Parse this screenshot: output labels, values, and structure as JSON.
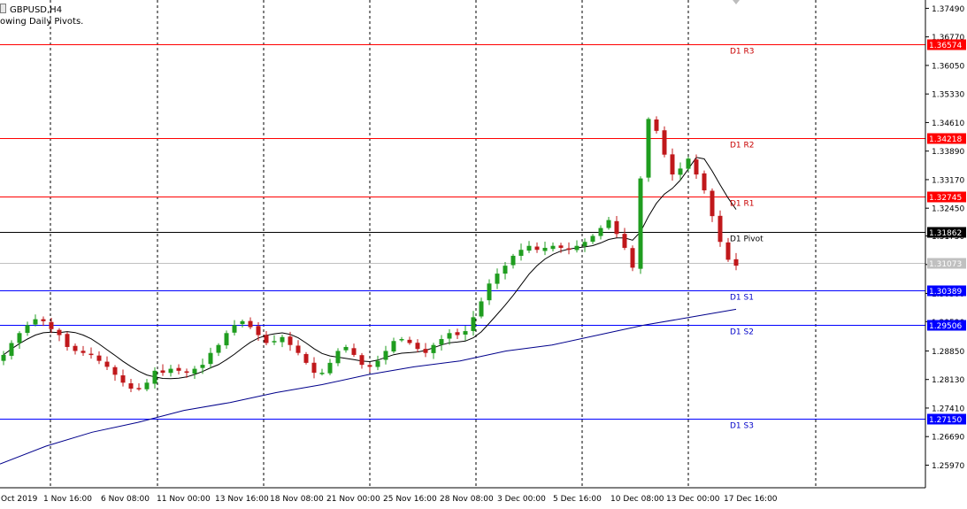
{
  "header": {
    "symbol_label": "GBPUSD,H4",
    "indicator_label": "owing Daily Pivots."
  },
  "colors": {
    "bull": "#1f9d1f",
    "bear": "#c0181b",
    "resistance": "#ff0000",
    "support": "#0000ff",
    "pivot": "#000000",
    "ma_fast": "#000000",
    "ma_slow": "#00008b",
    "current_price": "#c0c0c0"
  },
  "chart_data": {
    "type": "candlestick",
    "symbol": "GBPUSD",
    "timeframe": "H4",
    "ylim": [
      1.254,
      1.377
    ],
    "y_ticks": [
      "1.37490",
      "1.36770",
      "1.36050",
      "1.35330",
      "1.34610",
      "1.33890",
      "1.33170",
      "1.32450",
      "1.31750",
      "1.31030",
      "1.30300",
      "1.29590",
      "1.28850",
      "1.28130",
      "1.27410",
      "1.26690",
      "1.25970"
    ],
    "x_ticks": [
      "Oct 2019",
      "1 Nov 16:00",
      "6 Nov 08:00",
      "11 Nov 00:00",
      "13 Nov 16:00",
      "18 Nov 08:00",
      "21 Nov 00:00",
      "25 Nov 16:00",
      "28 Nov 08:00",
      "3 Dec 00:00",
      "5 Dec 16:00",
      "10 Dec 08:00",
      "13 Dec 00:00",
      "17 Dec 16:00"
    ],
    "pivot_levels": [
      {
        "name": "D1 R3",
        "value": 1.36574,
        "price_label": "1.36574",
        "kind": "resistance"
      },
      {
        "name": "D1 R2",
        "value": 1.34218,
        "price_label": "1.34218",
        "kind": "resistance"
      },
      {
        "name": "D1 R1",
        "value": 1.32745,
        "price_label": "1.32745",
        "kind": "resistance"
      },
      {
        "name": "D1 Pivot",
        "value": 1.31862,
        "price_label": "1.31862",
        "kind": "pivot"
      },
      {
        "name": "D1 S1",
        "value": 1.30389,
        "price_label": "1.30389",
        "kind": "support"
      },
      {
        "name": "D1 S2",
        "value": 1.29506,
        "price_label": "1.29506",
        "kind": "support"
      },
      {
        "name": "D1 S3",
        "value": 1.2715,
        "price_label": "1.27150",
        "kind": "support"
      }
    ],
    "current_price": {
      "value": 1.31073,
      "price_label": "1.31073"
    },
    "series": [
      {
        "name": "Close",
        "values": [
          1.2875,
          1.2905,
          1.293,
          1.295,
          1.2965,
          1.296,
          1.294,
          1.2925,
          1.2895,
          1.2885,
          1.288,
          1.2875,
          1.286,
          1.2845,
          1.2825,
          1.2805,
          1.279,
          1.279,
          1.2805,
          1.2835,
          1.283,
          1.284,
          1.2835,
          1.283,
          1.284,
          1.285,
          1.288,
          1.29,
          1.293,
          1.295,
          1.296,
          1.2945,
          1.2925,
          1.2905,
          1.291,
          1.292,
          1.29,
          1.288,
          1.2855,
          1.283,
          1.283,
          1.2855,
          1.2885,
          1.2895,
          1.2875,
          1.285,
          1.2845,
          1.286,
          1.2885,
          1.291,
          1.2915,
          1.2905,
          1.289,
          1.288,
          1.29,
          1.2915,
          1.293,
          1.2925,
          1.2935,
          1.297,
          1.301,
          1.3055,
          1.308,
          1.31,
          1.3125,
          1.314,
          1.315,
          1.314,
          1.3145,
          1.315,
          1.3145,
          1.314,
          1.315,
          1.316,
          1.3175,
          1.3195,
          1.3215,
          1.318,
          1.3145,
          1.3095,
          1.332,
          1.347,
          1.344,
          1.338,
          1.333,
          1.3345,
          1.337,
          1.333,
          1.329,
          1.3225,
          1.316,
          1.3115,
          1.31
        ]
      },
      {
        "name": "MA slow",
        "values": [
          1.26,
          1.2645,
          1.268,
          1.2705,
          1.2735,
          1.2755,
          1.278,
          1.28,
          1.2825,
          1.2845,
          1.286,
          1.2885,
          1.29,
          1.2925,
          1.295,
          1.297,
          1.299
        ]
      }
    ]
  }
}
